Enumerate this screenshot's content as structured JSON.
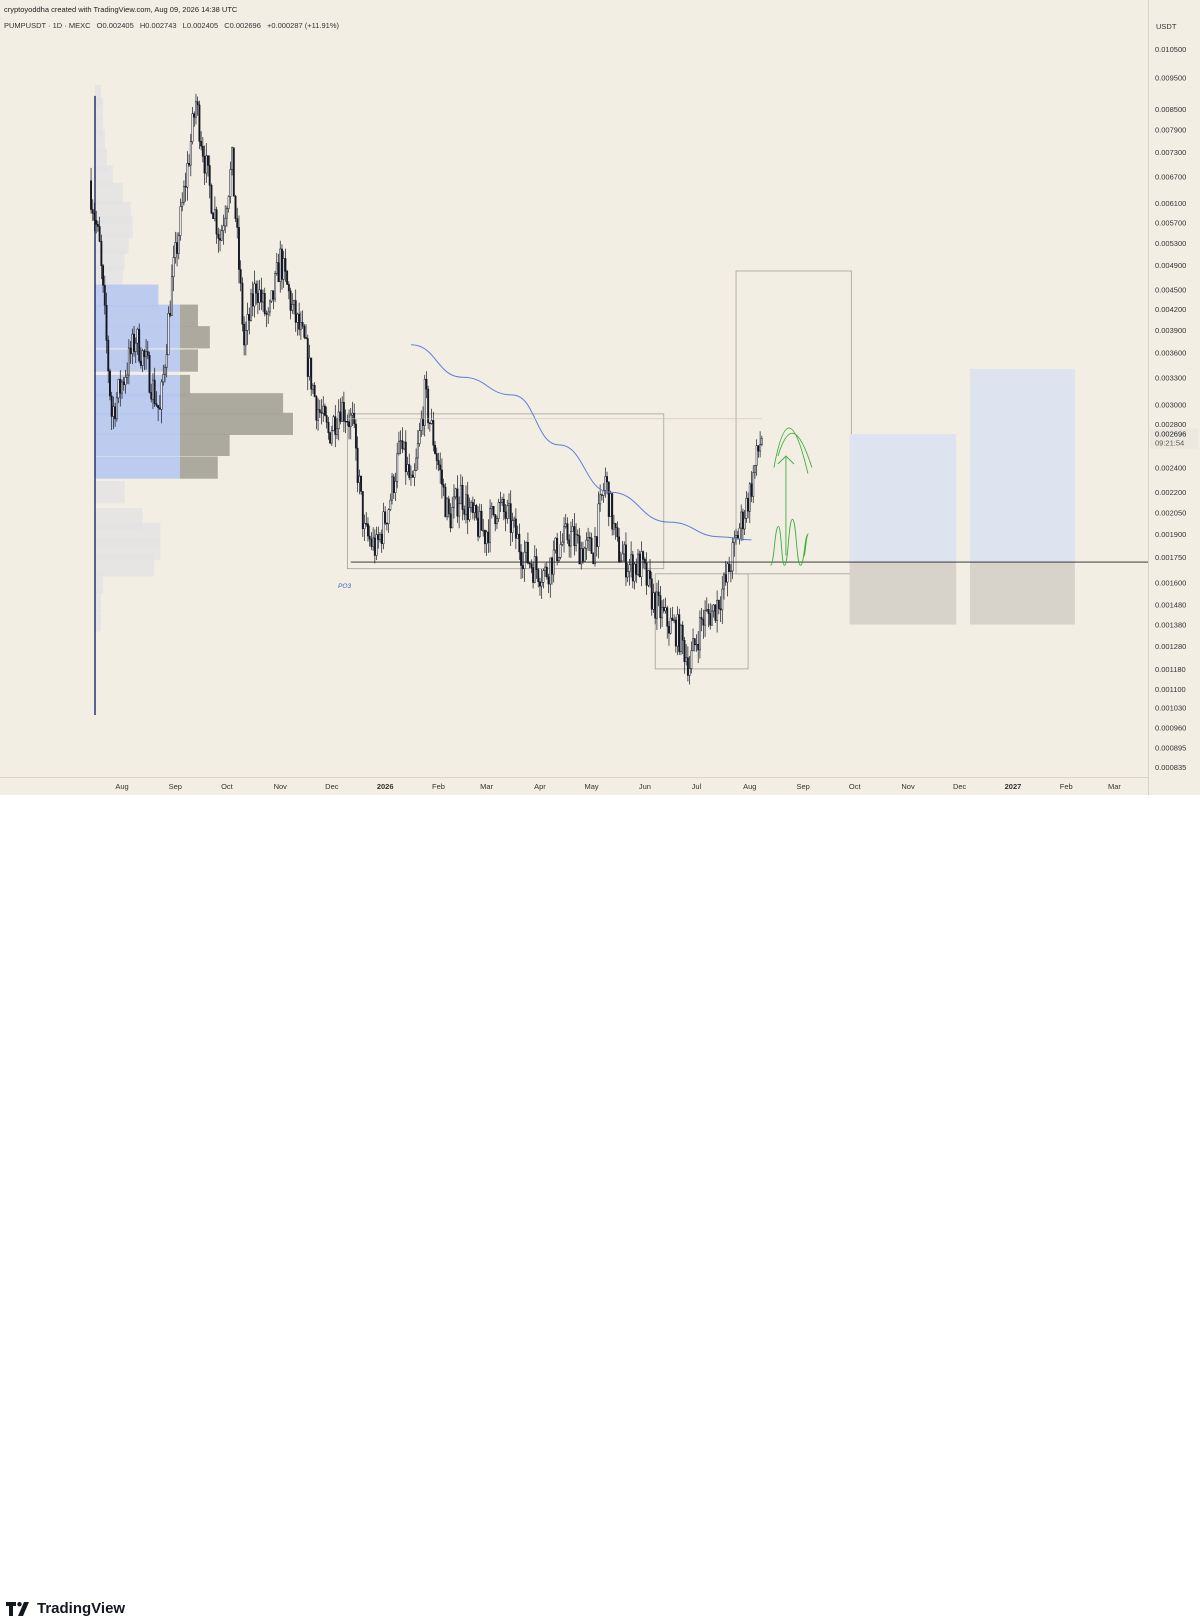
{
  "header": {
    "author_line": "cryptoyoddha created with TradingView.com, Aug 09, 2026 14:38 UTC",
    "symbol": "PUMPUSDT · 1D · MEXC",
    "open": "O0.002405",
    "high": "H0.002743",
    "low": "L0.002405",
    "close": "C0.002696",
    "change": "+0.000287 (+11.91%)"
  },
  "price_axis": {
    "unit": "USDT",
    "ticks": [
      "0.010500",
      "0.009500",
      "0.008500",
      "0.007900",
      "0.007300",
      "0.006700",
      "0.006100",
      "0.005700",
      "0.005300",
      "0.004900",
      "0.004500",
      "0.004200",
      "0.003900",
      "0.003600",
      "0.003300",
      "0.003000",
      "0.002800",
      "0.002400",
      "0.002200",
      "0.002050",
      "0.001900",
      "0.001750",
      "0.001600",
      "0.001480",
      "0.001380",
      "0.001280",
      "0.001180",
      "0.001100",
      "0.001030",
      "0.000960",
      "0.000895",
      "0.000835"
    ],
    "current_price": "0.002696",
    "countdown": "09:21:54"
  },
  "time_axis": {
    "ticks": [
      "Aug",
      "Sep",
      "Oct",
      "Nov",
      "Dec",
      "2026",
      "Feb",
      "Mar",
      "Apr",
      "May",
      "Jun",
      "Jul",
      "Aug",
      "Sep",
      "Oct",
      "Nov",
      "Dec",
      "2027",
      "Feb",
      "Mar"
    ]
  },
  "annotations": {
    "po3_label": "PO3"
  },
  "colors": {
    "background": "#f3eee4",
    "candle": "#131722",
    "moving_average": "#5b7ed6",
    "projection": "#3fae3f",
    "volume_profile_value_area": "#b7c7f0",
    "volume_profile_bar": "#a8a49b",
    "target_box": "#dde3ef",
    "stop_box": "#d7d3cb"
  },
  "chart_data": {
    "type": "candlestick",
    "symbol": "PUMPUSDT",
    "timeframe": "1D",
    "exchange": "MEXC",
    "scale": "log",
    "ylim": [
      0.000835,
      0.0105
    ],
    "current_price": 0.002696,
    "price_path_closes": [
      {
        "date": "2025-07-14",
        "close": 0.0066
      },
      {
        "date": "2025-07-20",
        "close": 0.0052
      },
      {
        "date": "2025-07-27",
        "close": 0.0029
      },
      {
        "date": "2025-08-03",
        "close": 0.0033
      },
      {
        "date": "2025-08-10",
        "close": 0.0038
      },
      {
        "date": "2025-08-17",
        "close": 0.0034
      },
      {
        "date": "2025-08-24",
        "close": 0.0029
      },
      {
        "date": "2025-08-31",
        "close": 0.0046
      },
      {
        "date": "2025-09-07",
        "close": 0.0063
      },
      {
        "date": "2025-09-14",
        "close": 0.0087
      },
      {
        "date": "2025-09-21",
        "close": 0.0066
      },
      {
        "date": "2025-09-28",
        "close": 0.0054
      },
      {
        "date": "2025-10-05",
        "close": 0.007
      },
      {
        "date": "2025-10-12",
        "close": 0.0037
      },
      {
        "date": "2025-10-19",
        "close": 0.0046
      },
      {
        "date": "2025-10-26",
        "close": 0.004
      },
      {
        "date": "2025-11-02",
        "close": 0.005
      },
      {
        "date": "2025-11-09",
        "close": 0.0042
      },
      {
        "date": "2025-11-16",
        "close": 0.0037
      },
      {
        "date": "2025-11-23",
        "close": 0.003
      },
      {
        "date": "2025-11-30",
        "close": 0.0027
      },
      {
        "date": "2025-12-07",
        "close": 0.003
      },
      {
        "date": "2025-12-14",
        "close": 0.0028
      },
      {
        "date": "2025-12-21",
        "close": 0.0019
      },
      {
        "date": "2025-12-28",
        "close": 0.0018
      },
      {
        "date": "2026-01-04",
        "close": 0.0021
      },
      {
        "date": "2026-01-11",
        "close": 0.0026
      },
      {
        "date": "2026-01-18",
        "close": 0.0022
      },
      {
        "date": "2026-01-25",
        "close": 0.0031
      },
      {
        "date": "2026-02-01",
        "close": 0.0025
      },
      {
        "date": "2026-02-08",
        "close": 0.002
      },
      {
        "date": "2026-02-15",
        "close": 0.0022
      },
      {
        "date": "2026-02-22",
        "close": 0.002
      },
      {
        "date": "2026-03-01",
        "close": 0.0019
      },
      {
        "date": "2026-03-08",
        "close": 0.0021
      },
      {
        "date": "2026-03-15",
        "close": 0.002
      },
      {
        "date": "2026-03-22",
        "close": 0.0018
      },
      {
        "date": "2026-03-29",
        "close": 0.0017
      },
      {
        "date": "2026-04-05",
        "close": 0.00165
      },
      {
        "date": "2026-04-12",
        "close": 0.0018
      },
      {
        "date": "2026-04-19",
        "close": 0.0019
      },
      {
        "date": "2026-04-26",
        "close": 0.0018
      },
      {
        "date": "2026-05-03",
        "close": 0.0018
      },
      {
        "date": "2026-05-10",
        "close": 0.0023
      },
      {
        "date": "2026-05-17",
        "close": 0.0018
      },
      {
        "date": "2026-05-24",
        "close": 0.0017
      },
      {
        "date": "2026-05-31",
        "close": 0.0017
      },
      {
        "date": "2026-06-07",
        "close": 0.0015
      },
      {
        "date": "2026-06-14",
        "close": 0.0014
      },
      {
        "date": "2026-06-21",
        "close": 0.00135
      },
      {
        "date": "2026-06-28",
        "close": 0.0012
      },
      {
        "date": "2026-07-05",
        "close": 0.0014
      },
      {
        "date": "2026-07-12",
        "close": 0.00145
      },
      {
        "date": "2026-07-19",
        "close": 0.0016
      },
      {
        "date": "2026-07-26",
        "close": 0.0019
      },
      {
        "date": "2026-08-02",
        "close": 0.0022
      },
      {
        "date": "2026-08-09",
        "close": 0.002696
      }
    ],
    "moving_average": [
      {
        "date": "2026-01-16",
        "value": 0.0037
      },
      {
        "date": "2026-02-15",
        "value": 0.0033
      },
      {
        "date": "2026-03-16",
        "value": 0.0031
      },
      {
        "date": "2026-04-12",
        "value": 0.0026
      },
      {
        "date": "2026-05-12",
        "value": 0.0022
      },
      {
        "date": "2026-06-15",
        "value": 0.00198
      },
      {
        "date": "2026-07-15",
        "value": 0.00188
      },
      {
        "date": "2026-08-02",
        "value": 0.00186
      }
    ],
    "horizontal_levels": [
      0.00172
    ],
    "range_boxes": [
      {
        "from": "2025-12-10",
        "to": "2026-06-12",
        "high": 0.0029,
        "low": 0.00168
      },
      {
        "from": "2026-06-07",
        "to": "2026-07-31",
        "high": 0.00165,
        "low": 0.00118
      },
      {
        "from": "2026-07-24",
        "to": "2026-09-29",
        "high": 0.0048,
        "low": 0.00165
      }
    ],
    "position_boxes": [
      {
        "from": "2026-09-28",
        "to": "2026-11-29",
        "entry": 0.00172,
        "target": 0.0027,
        "stop": 0.00138
      },
      {
        "from": "2026-12-07",
        "to": "2027-02-06",
        "entry": 0.00172,
        "target": 0.0034,
        "stop": 0.00138
      }
    ],
    "volume_profile": [
      {
        "price": 0.0089,
        "volume": 3
      },
      {
        "price": 0.0085,
        "volume": 4
      },
      {
        "price": 0.008,
        "volume": 4
      },
      {
        "price": 0.0076,
        "volume": 5
      },
      {
        "price": 0.0071,
        "volume": 6
      },
      {
        "price": 0.0067,
        "volume": 9
      },
      {
        "price": 0.0063,
        "volume": 14
      },
      {
        "price": 0.0059,
        "volume": 18
      },
      {
        "price": 0.0056,
        "volume": 19
      },
      {
        "price": 0.0053,
        "volume": 17
      },
      {
        "price": 0.005,
        "volume": 15
      },
      {
        "price": 0.0047,
        "volume": 14
      },
      {
        "price": 0.0044,
        "volume": 32
      },
      {
        "price": 0.0041,
        "volume": 52
      },
      {
        "price": 0.0038,
        "volume": 58
      },
      {
        "price": 0.0035,
        "volume": 52
      },
      {
        "price": 0.0032,
        "volume": 48
      },
      {
        "price": 0.003,
        "volume": 95
      },
      {
        "price": 0.0028,
        "volume": 100
      },
      {
        "price": 0.0026,
        "volume": 68
      },
      {
        "price": 0.0024,
        "volume": 62
      },
      {
        "price": 0.0022,
        "volume": 15
      },
      {
        "price": 0.002,
        "volume": 24
      },
      {
        "price": 0.0019,
        "volume": 33
      },
      {
        "price": 0.0018,
        "volume": 33
      },
      {
        "price": 0.0017,
        "volume": 30
      },
      {
        "price": 0.0016,
        "volume": 4
      },
      {
        "price": 0.0015,
        "volume": 3
      },
      {
        "price": 0.0014,
        "volume": 3
      }
    ],
    "point_of_control": 0.0028,
    "value_area": [
      0.0024,
      0.0044
    ],
    "projection": "upward arrow and two bullish wave paths toward about 0.0027",
    "title": "",
    "xlabel": "",
    "ylabel": ""
  }
}
